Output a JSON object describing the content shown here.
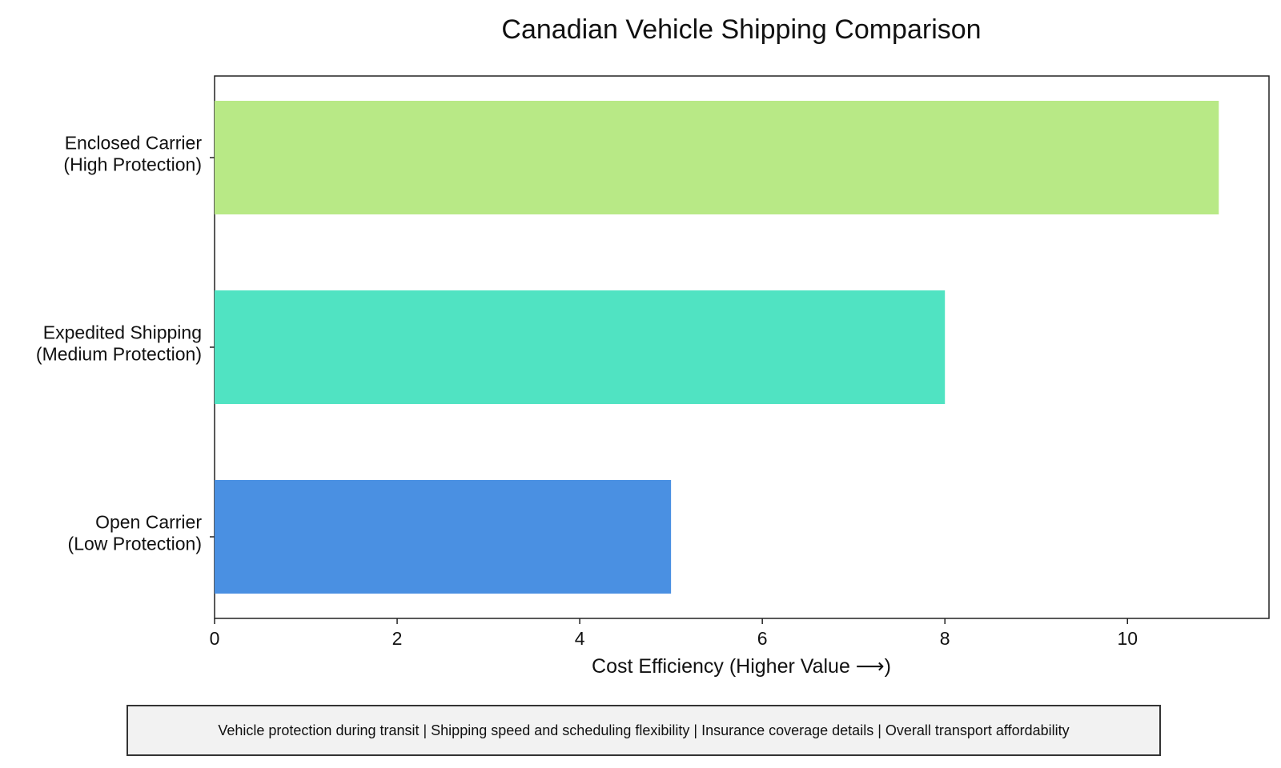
{
  "chart_data": {
    "type": "bar",
    "orientation": "horizontal",
    "title": "Canadian Vehicle Shipping Comparison",
    "xlabel": "Cost Efficiency (Higher Value ⟶)",
    "ylabel": "",
    "xlim": [
      0,
      11.55
    ],
    "xticks": [
      0,
      2,
      4,
      6,
      8,
      10
    ],
    "categories": [
      [
        "Open Carrier",
        "(Low Protection)"
      ],
      [
        "Expedited Shipping",
        "(Medium Protection)"
      ],
      [
        "Enclosed Carrier",
        "(High Protection)"
      ]
    ],
    "values": [
      5,
      8,
      11
    ],
    "colors": [
      "#4a90e2",
      "#50e3c2",
      "#b8e986"
    ],
    "grid": false,
    "legend": "none"
  },
  "footnote": "Vehicle protection during transit  |  Shipping speed and scheduling flexibility  |  Insurance coverage details  |  Overall transport affordability"
}
